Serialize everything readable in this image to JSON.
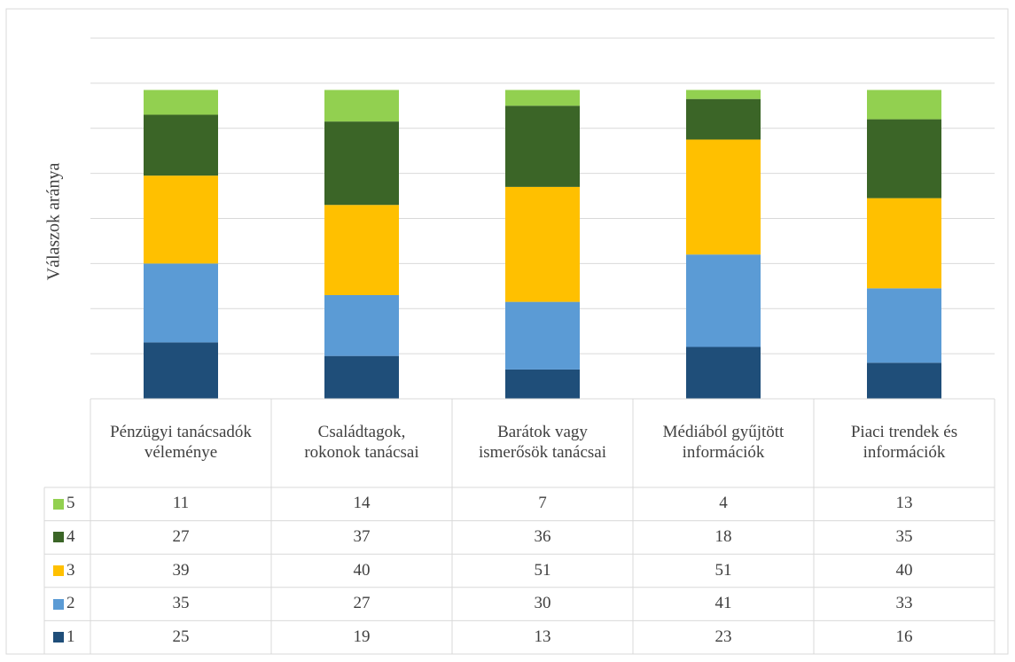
{
  "chart_data": {
    "type": "stacked_bar",
    "y_label": "Válaszok aránya",
    "categories": [
      "Pénzügyi tanácsadók véleménye",
      "Családtagok, rokonok tanácsai",
      "Barátok vagy ismerősök tanácsai",
      "Médiából gyűjtött információk",
      "Piaci trendek és információk"
    ],
    "series": [
      {
        "name": "1",
        "color": "#1f4e79",
        "values": [
          25,
          19,
          13,
          23,
          16
        ]
      },
      {
        "name": "2",
        "color": "#5b9bd5",
        "values": [
          35,
          27,
          30,
          41,
          33
        ]
      },
      {
        "name": "3",
        "color": "#ffc000",
        "values": [
          39,
          40,
          51,
          51,
          40
        ]
      },
      {
        "name": "4",
        "color": "#3b6527",
        "values": [
          27,
          37,
          36,
          18,
          35
        ]
      },
      {
        "name": "5",
        "color": "#92d050",
        "values": [
          11,
          14,
          7,
          4,
          13
        ]
      }
    ],
    "ylim": [
      0,
      160
    ],
    "yticks": [
      0,
      20,
      40,
      60,
      80,
      100,
      120,
      140,
      160
    ],
    "grid": true
  }
}
